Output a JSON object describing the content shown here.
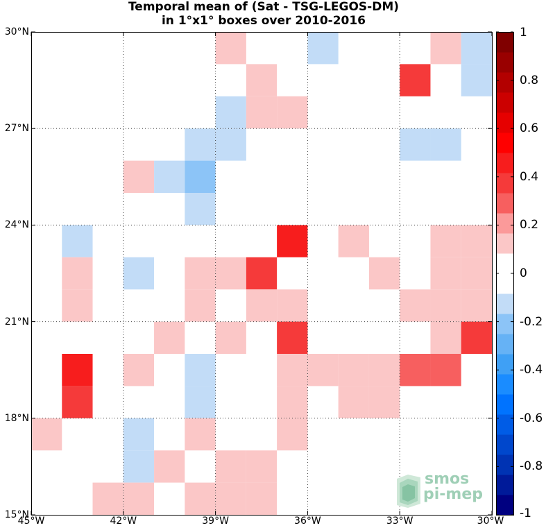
{
  "title": {
    "line1": "Temporal mean of (Sat - TSG-LEGOS-DM)",
    "line2": "in 1°x1° boxes over 2010-2016"
  },
  "map": {
    "lon_range": [
      -45,
      -30
    ],
    "lat_range": [
      15,
      30
    ],
    "grid": "dotted",
    "x_ticks": [
      {
        "value": -45,
        "label": "45°W"
      },
      {
        "value": -42,
        "label": "42°W"
      },
      {
        "value": -39,
        "label": "39°W"
      },
      {
        "value": -36,
        "label": "36°W"
      },
      {
        "value": -33,
        "label": "33°W"
      },
      {
        "value": -30,
        "label": "30°W"
      }
    ],
    "y_ticks": [
      {
        "value": 30,
        "label": "30°N"
      },
      {
        "value": 27,
        "label": "27°N"
      },
      {
        "value": 24,
        "label": "24°N"
      },
      {
        "value": 21,
        "label": "21°N"
      },
      {
        "value": 18,
        "label": "18°N"
      },
      {
        "value": 15,
        "label": "15°N"
      }
    ],
    "cells": [
      {
        "lon": -39,
        "lat": 29,
        "v": 0.15
      },
      {
        "lon": -36,
        "lat": 29,
        "v": -0.15
      },
      {
        "lon": -32,
        "lat": 29,
        "v": 0.15
      },
      {
        "lon": -31,
        "lat": 29,
        "v": -0.15
      },
      {
        "lon": -38,
        "lat": 28,
        "v": 0.15
      },
      {
        "lon": -33,
        "lat": 28,
        "v": 0.35
      },
      {
        "lon": -31,
        "lat": 28,
        "v": -0.15
      },
      {
        "lon": -39,
        "lat": 27,
        "v": -0.15
      },
      {
        "lon": -38,
        "lat": 27,
        "v": 0.15
      },
      {
        "lon": -37,
        "lat": 27,
        "v": 0.15
      },
      {
        "lon": -40,
        "lat": 26,
        "v": -0.15
      },
      {
        "lon": -39,
        "lat": 26,
        "v": -0.15
      },
      {
        "lon": -33,
        "lat": 26,
        "v": -0.15
      },
      {
        "lon": -32,
        "lat": 26,
        "v": -0.15
      },
      {
        "lon": -42,
        "lat": 25,
        "v": 0.15
      },
      {
        "lon": -41,
        "lat": 25,
        "v": -0.15
      },
      {
        "lon": -40,
        "lat": 25,
        "v": -0.25
      },
      {
        "lon": -40,
        "lat": 24,
        "v": -0.15
      },
      {
        "lon": -44,
        "lat": 23,
        "v": -0.15
      },
      {
        "lon": -37,
        "lat": 23,
        "v": 0.45
      },
      {
        "lon": -35,
        "lat": 23,
        "v": 0.15
      },
      {
        "lon": -32,
        "lat": 23,
        "v": 0.15
      },
      {
        "lon": -31,
        "lat": 23,
        "v": 0.15
      },
      {
        "lon": -44,
        "lat": 22,
        "v": 0.15
      },
      {
        "lon": -42,
        "lat": 22,
        "v": -0.15
      },
      {
        "lon": -40,
        "lat": 22,
        "v": 0.15
      },
      {
        "lon": -39,
        "lat": 22,
        "v": 0.15
      },
      {
        "lon": -38,
        "lat": 22,
        "v": 0.35
      },
      {
        "lon": -34,
        "lat": 22,
        "v": 0.15
      },
      {
        "lon": -32,
        "lat": 22,
        "v": 0.15
      },
      {
        "lon": -31,
        "lat": 22,
        "v": 0.15
      },
      {
        "lon": -44,
        "lat": 21,
        "v": 0.15
      },
      {
        "lon": -40,
        "lat": 21,
        "v": 0.15
      },
      {
        "lon": -38,
        "lat": 21,
        "v": 0.15
      },
      {
        "lon": -37,
        "lat": 21,
        "v": 0.15
      },
      {
        "lon": -33,
        "lat": 21,
        "v": 0.15
      },
      {
        "lon": -32,
        "lat": 21,
        "v": 0.15
      },
      {
        "lon": -31,
        "lat": 21,
        "v": 0.15
      },
      {
        "lon": -41,
        "lat": 20,
        "v": 0.15
      },
      {
        "lon": -39,
        "lat": 20,
        "v": 0.15
      },
      {
        "lon": -37,
        "lat": 20,
        "v": 0.35
      },
      {
        "lon": -32,
        "lat": 20,
        "v": 0.15
      },
      {
        "lon": -31,
        "lat": 20,
        "v": 0.35
      },
      {
        "lon": -44,
        "lat": 19,
        "v": 0.45
      },
      {
        "lon": -42,
        "lat": 19,
        "v": 0.15
      },
      {
        "lon": -40,
        "lat": 19,
        "v": -0.15
      },
      {
        "lon": -37,
        "lat": 19,
        "v": 0.15
      },
      {
        "lon": -36,
        "lat": 19,
        "v": 0.15
      },
      {
        "lon": -35,
        "lat": 19,
        "v": 0.15
      },
      {
        "lon": -34,
        "lat": 19,
        "v": 0.15
      },
      {
        "lon": -33,
        "lat": 19,
        "v": 0.25
      },
      {
        "lon": -32,
        "lat": 19,
        "v": 0.25
      },
      {
        "lon": -44,
        "lat": 18,
        "v": 0.35
      },
      {
        "lon": -40,
        "lat": 18,
        "v": -0.15
      },
      {
        "lon": -37,
        "lat": 18,
        "v": 0.15
      },
      {
        "lon": -35,
        "lat": 18,
        "v": 0.15
      },
      {
        "lon": -34,
        "lat": 18,
        "v": 0.15
      },
      {
        "lon": -45,
        "lat": 17,
        "v": 0.15
      },
      {
        "lon": -42,
        "lat": 17,
        "v": -0.15
      },
      {
        "lon": -40,
        "lat": 17,
        "v": 0.15
      },
      {
        "lon": -37,
        "lat": 17,
        "v": 0.15
      },
      {
        "lon": -42,
        "lat": 16,
        "v": -0.15
      },
      {
        "lon": -41,
        "lat": 16,
        "v": 0.15
      },
      {
        "lon": -39,
        "lat": 16,
        "v": 0.15
      },
      {
        "lon": -38,
        "lat": 16,
        "v": 0.15
      },
      {
        "lon": -43,
        "lat": 15,
        "v": 0.15
      },
      {
        "lon": -42,
        "lat": 15,
        "v": 0.15
      },
      {
        "lon": -40,
        "lat": 15,
        "v": 0.15
      },
      {
        "lon": -39,
        "lat": 15,
        "v": 0.15
      },
      {
        "lon": -38,
        "lat": 15,
        "v": 0.15
      }
    ]
  },
  "colorbar": {
    "range": [
      -1,
      1
    ],
    "colors_bottom_to_top": [
      "#000080",
      "#001a99",
      "#0033b3",
      "#0047cc",
      "#005ce6",
      "#0073ff",
      "#1a8cff",
      "#3fa0f5",
      "#66b2f5",
      "#8cc4f7",
      "#c2dcf7",
      "#ffffff",
      "#ffffff",
      "#fbc7c7",
      "#fb9a9a",
      "#f75f5f",
      "#f53a3a",
      "#f71d1d",
      "#ff0000",
      "#e60000",
      "#cc0000",
      "#b30000",
      "#990000",
      "#800000"
    ],
    "labels": [
      {
        "value": 1,
        "text": "1"
      },
      {
        "value": 0.8,
        "text": "0.8"
      },
      {
        "value": 0.6,
        "text": "0.6"
      },
      {
        "value": 0.4,
        "text": "0.4"
      },
      {
        "value": 0.2,
        "text": "0.2"
      },
      {
        "value": 0,
        "text": "0"
      },
      {
        "value": -0.2,
        "text": "-0.2"
      },
      {
        "value": -0.4,
        "text": "-0.4"
      },
      {
        "value": -0.6,
        "text": "-0.6"
      },
      {
        "value": -0.8,
        "text": "-0.8"
      },
      {
        "value": -1,
        "text": "-1"
      }
    ]
  },
  "logo": {
    "line1": "smos",
    "line2": "pi-mep",
    "color": "#9fcfb6"
  }
}
